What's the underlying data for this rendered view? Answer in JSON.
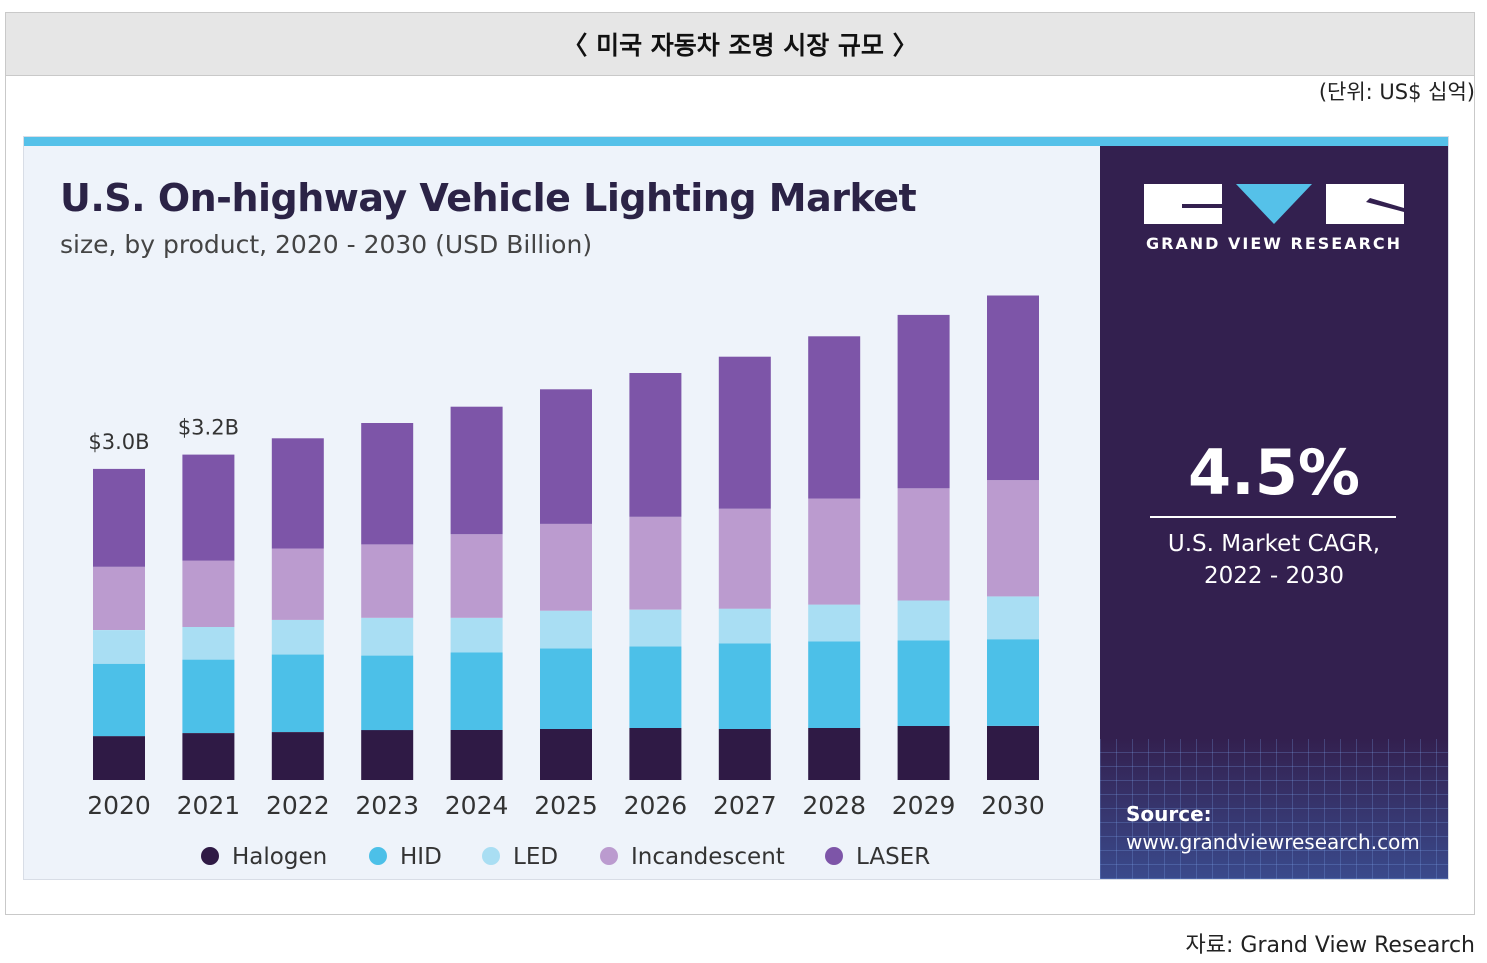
{
  "header": {
    "title": "〈 미국 자동차 조명 시장 규모 〉"
  },
  "unit_label": "(단위: US$ 십억)",
  "footer": {
    "source": "자료: Grand View Research"
  },
  "brand": {
    "name": "GRAND VIEW RESEARCH"
  },
  "cagr": {
    "value": "4.5%",
    "label_line1": "U.S. Market CAGR,",
    "label_line2": "2022 - 2030"
  },
  "source": {
    "title": "Source:",
    "url": "www.grandviewresearch.com"
  },
  "chart_data": {
    "type": "bar",
    "stacked": true,
    "title": "U.S. On-highway Vehicle Lighting Market",
    "subtitle": "size, by product, 2020 - 2030 (USD Billion)",
    "xlabel": "",
    "ylabel": "",
    "legend_position": "bottom",
    "grid": false,
    "categories": [
      "2020",
      "2021",
      "2022",
      "2023",
      "2024",
      "2025",
      "2026",
      "2027",
      "2028",
      "2029",
      "2030"
    ],
    "series": [
      {
        "name": "Halogen",
        "color": "#2f1a45",
        "values": [
          0.43,
          0.46,
          0.47,
          0.49,
          0.49,
          0.5,
          0.51,
          0.5,
          0.51,
          0.53,
          0.53
        ]
      },
      {
        "name": "HID",
        "color": "#4cc0e8",
        "values": [
          0.71,
          0.72,
          0.76,
          0.73,
          0.76,
          0.79,
          0.8,
          0.84,
          0.85,
          0.84,
          0.85
        ]
      },
      {
        "name": "LED",
        "color": "#a9def3",
        "values": [
          0.33,
          0.32,
          0.34,
          0.37,
          0.34,
          0.37,
          0.36,
          0.34,
          0.36,
          0.39,
          0.42
        ]
      },
      {
        "name": "Incandescent",
        "color": "#bb9bcf",
        "values": [
          0.62,
          0.65,
          0.7,
          0.72,
          0.82,
          0.85,
          0.91,
          0.98,
          1.04,
          1.1,
          1.14
        ]
      },
      {
        "name": "LASER",
        "color": "#7d55a8",
        "values": [
          0.96,
          1.04,
          1.08,
          1.19,
          1.25,
          1.32,
          1.41,
          1.49,
          1.59,
          1.7,
          1.81
        ]
      }
    ],
    "data_labels": [
      {
        "category": "2020",
        "text": "$3.0B"
      },
      {
        "category": "2021",
        "text": "$3.2B"
      }
    ]
  }
}
